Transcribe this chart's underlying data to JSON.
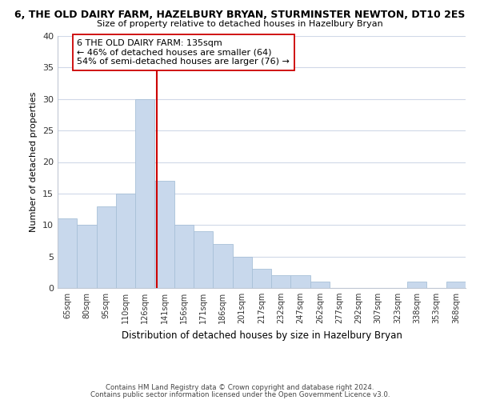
{
  "title_line1": "6, THE OLD DAIRY FARM, HAZELBURY BRYAN, STURMINSTER NEWTON, DT10 2ES",
  "title_line2": "Size of property relative to detached houses in Hazelbury Bryan",
  "xlabel": "Distribution of detached houses by size in Hazelbury Bryan",
  "ylabel": "Number of detached properties",
  "bar_labels": [
    "65sqm",
    "80sqm",
    "95sqm",
    "110sqm",
    "126sqm",
    "141sqm",
    "156sqm",
    "171sqm",
    "186sqm",
    "201sqm",
    "217sqm",
    "232sqm",
    "247sqm",
    "262sqm",
    "277sqm",
    "292sqm",
    "307sqm",
    "323sqm",
    "338sqm",
    "353sqm",
    "368sqm"
  ],
  "bar_values": [
    11,
    10,
    13,
    15,
    30,
    17,
    10,
    9,
    7,
    5,
    3,
    2,
    2,
    1,
    0,
    0,
    0,
    0,
    1,
    0,
    1
  ],
  "bar_color": "#c8d8ec",
  "bar_edge_color": "#a8c0d8",
  "vline_x_index": 4.6,
  "vline_color": "#cc0000",
  "annotation_text": "6 THE OLD DAIRY FARM: 135sqm\n← 46% of detached houses are smaller (64)\n54% of semi-detached houses are larger (76) →",
  "annotation_box_color": "#ffffff",
  "annotation_box_edge": "#cc0000",
  "ylim": [
    0,
    40
  ],
  "yticks": [
    0,
    5,
    10,
    15,
    20,
    25,
    30,
    35,
    40
  ],
  "footer_line1": "Contains HM Land Registry data © Crown copyright and database right 2024.",
  "footer_line2": "Contains public sector information licensed under the Open Government Licence v3.0.",
  "background_color": "#ffffff",
  "grid_color": "#d0d8e8"
}
